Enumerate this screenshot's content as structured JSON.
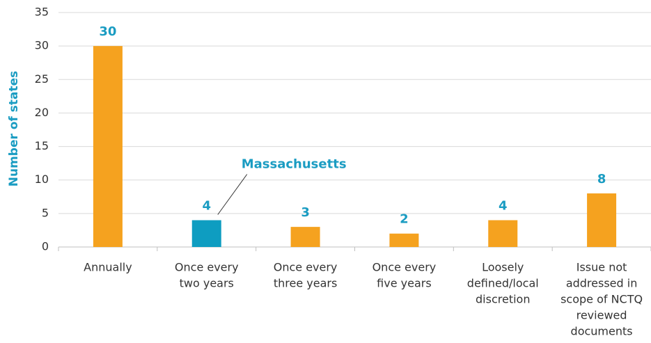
{
  "chart_data": {
    "type": "bar",
    "y_label": "Number of states",
    "categories": [
      [
        "Annually"
      ],
      [
        "Once every",
        "two years"
      ],
      [
        "Once every",
        "three years"
      ],
      [
        "Once every",
        "five years"
      ],
      [
        "Loosely",
        "defined/local",
        "discretion"
      ],
      [
        "Issue not",
        "addressed in",
        "scope of NCTQ",
        "reviewed",
        "documents"
      ]
    ],
    "values": [
      30,
      4,
      3,
      2,
      4,
      8
    ],
    "colors": [
      "#f5a21f",
      "#0e9dc1",
      "#f5a21f",
      "#f5a21f",
      "#f5a21f",
      "#f5a21f"
    ],
    "annotation": {
      "text": "Massachusetts",
      "category": 1
    },
    "ylim": [
      0,
      35
    ],
    "yticks": [
      0,
      5,
      10,
      15,
      20,
      25,
      30,
      35
    ],
    "grid": true
  }
}
